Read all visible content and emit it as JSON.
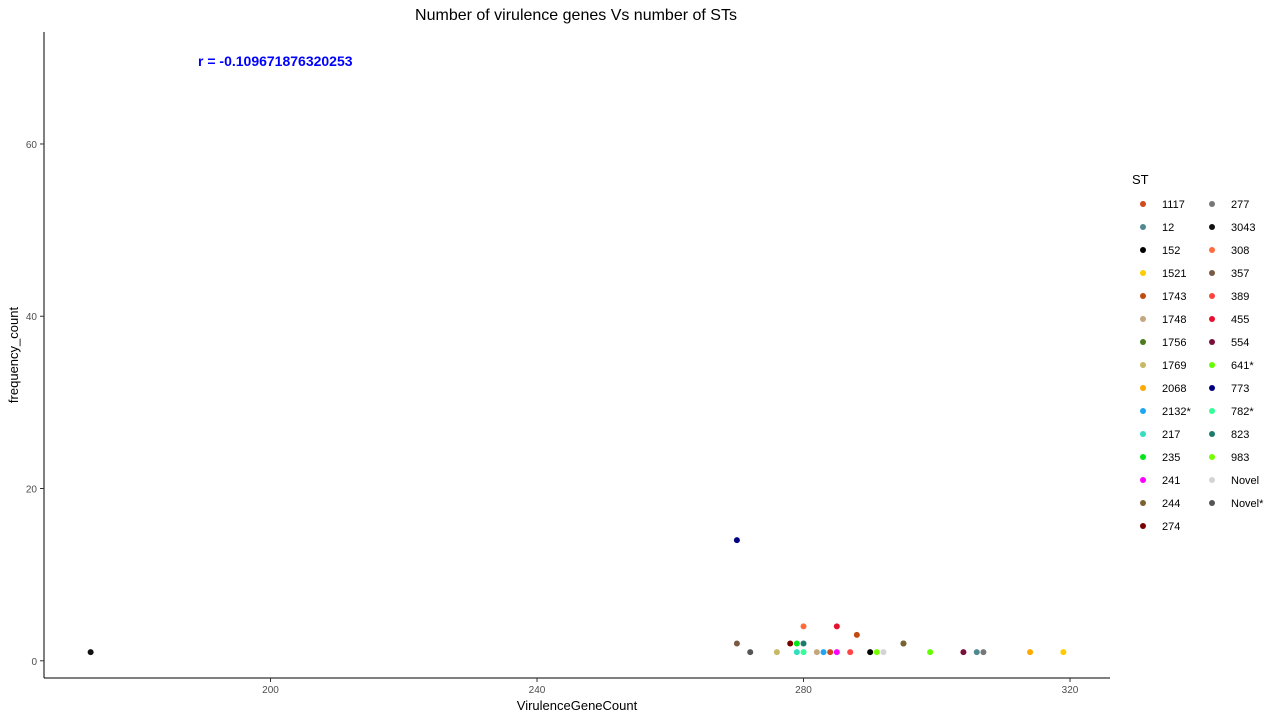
{
  "chart_data": {
    "type": "scatter",
    "title": "Number of virulence genes Vs number of STs",
    "xlabel": "VirulenceGeneCount",
    "ylabel": "frequency_count",
    "xlim": [
      166,
      326
    ],
    "ylim": [
      -2,
      73
    ],
    "xticks": [
      200,
      240,
      280,
      320
    ],
    "yticks": [
      0,
      20,
      40,
      60
    ],
    "grid": false,
    "legend_title": "ST",
    "legend_position": "right",
    "annotation": "r =  -0.109671876320253",
    "legend": [
      {
        "label": "1117",
        "color": "#D2491C"
      },
      {
        "label": "12",
        "color": "#4F8A91"
      },
      {
        "label": "152",
        "color": "#000000"
      },
      {
        "label": "1521",
        "color": "#FFCC00"
      },
      {
        "label": "1743",
        "color": "#C04A14"
      },
      {
        "label": "1748",
        "color": "#C4A77E"
      },
      {
        "label": "1756",
        "color": "#4C7A1C"
      },
      {
        "label": "1769",
        "color": "#C8B764"
      },
      {
        "label": "2068",
        "color": "#FFAA00"
      },
      {
        "label": "2132*",
        "color": "#1EA7F0"
      },
      {
        "label": "217",
        "color": "#33DDC0"
      },
      {
        "label": "235",
        "color": "#00E61A"
      },
      {
        "label": "241",
        "color": "#FF00FF"
      },
      {
        "label": "244",
        "color": "#7A6233"
      },
      {
        "label": "274",
        "color": "#7A0000"
      },
      {
        "label": "277",
        "color": "#777777"
      },
      {
        "label": "3043",
        "color": "#111111"
      },
      {
        "label": "308",
        "color": "#FF6B3D"
      },
      {
        "label": "357",
        "color": "#7A5A44"
      },
      {
        "label": "389",
        "color": "#FF4444"
      },
      {
        "label": "455",
        "color": "#E8112D"
      },
      {
        "label": "554",
        "color": "#7A0F3A"
      },
      {
        "label": "641*",
        "color": "#66FF00"
      },
      {
        "label": "773",
        "color": "#000080"
      },
      {
        "label": "782*",
        "color": "#33FF99"
      },
      {
        "label": "823",
        "color": "#1C7A6E"
      },
      {
        "label": "983",
        "color": "#77FF00"
      },
      {
        "label": "Novel",
        "color": "#D3D3D3"
      },
      {
        "label": "Novel*",
        "color": "#555555"
      }
    ],
    "points": [
      {
        "x": 173,
        "y": 1,
        "st": "3043"
      },
      {
        "x": 270,
        "y": 14,
        "st": "773"
      },
      {
        "x": 270,
        "y": 2,
        "st": "357"
      },
      {
        "x": 272,
        "y": 1,
        "st": "Novel*"
      },
      {
        "x": 276,
        "y": 1,
        "st": "1769"
      },
      {
        "x": 278,
        "y": 2,
        "st": "274"
      },
      {
        "x": 279,
        "y": 1,
        "st": "217"
      },
      {
        "x": 279,
        "y": 2,
        "st": "235"
      },
      {
        "x": 280,
        "y": 4,
        "st": "308"
      },
      {
        "x": 280,
        "y": 2,
        "st": "823"
      },
      {
        "x": 280,
        "y": 1,
        "st": "782*"
      },
      {
        "x": 282,
        "y": 1,
        "st": "1748"
      },
      {
        "x": 283,
        "y": 1,
        "st": "2132*"
      },
      {
        "x": 284,
        "y": 1,
        "st": "1117"
      },
      {
        "x": 285,
        "y": 4,
        "st": "455"
      },
      {
        "x": 285,
        "y": 1,
        "st": "241"
      },
      {
        "x": 287,
        "y": 1,
        "st": "389"
      },
      {
        "x": 288,
        "y": 3,
        "st": "1743"
      },
      {
        "x": 290,
        "y": 1,
        "st": "152"
      },
      {
        "x": 291,
        "y": 1,
        "st": "983"
      },
      {
        "x": 292,
        "y": 1,
        "st": "Novel"
      },
      {
        "x": 295,
        "y": 2,
        "st": "1756"
      },
      {
        "x": 295,
        "y": 2,
        "st": "244"
      },
      {
        "x": 299,
        "y": 1,
        "st": "641*"
      },
      {
        "x": 304,
        "y": 1,
        "st": "554"
      },
      {
        "x": 306,
        "y": 1,
        "st": "12"
      },
      {
        "x": 307,
        "y": 1,
        "st": "277"
      },
      {
        "x": 314,
        "y": 1,
        "st": "2068"
      },
      {
        "x": 319,
        "y": 1,
        "st": "1521"
      }
    ]
  }
}
